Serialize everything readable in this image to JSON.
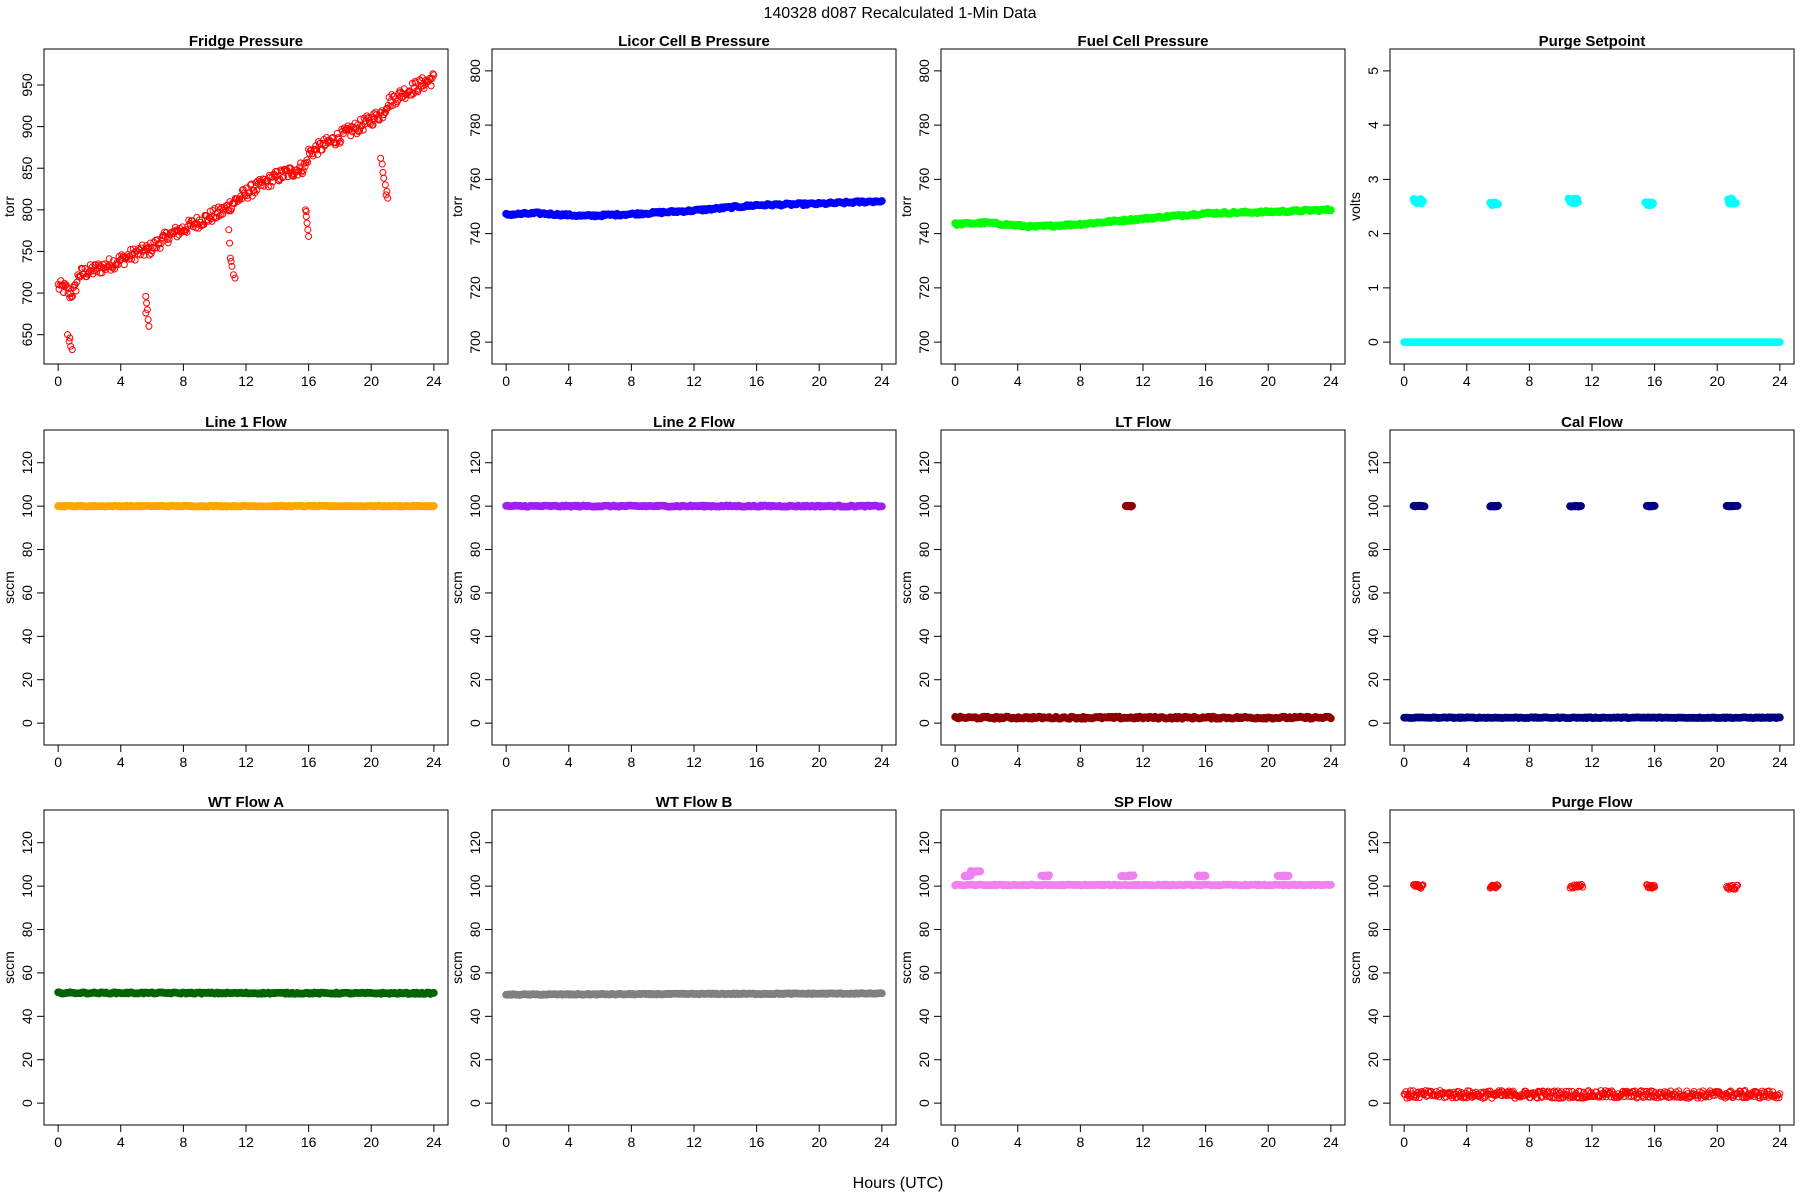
{
  "figure": {
    "title": "140328   d087   Recalculated 1-Min Data",
    "xlabel": "Hours (UTC)"
  },
  "chart_data": [
    {
      "type": "scatter",
      "title": "Fridge Pressure",
      "ylabel": "torr",
      "color": "#ff0000",
      "marker": "hollow-circle",
      "xlim": [
        0,
        24
      ],
      "ylim": [
        628,
        980
      ],
      "xticks": [
        0,
        4,
        8,
        12,
        16,
        20,
        24
      ],
      "yticks": [
        650,
        700,
        750,
        800,
        850,
        900,
        950
      ],
      "trend": [
        [
          0,
          708
        ],
        [
          0.5,
          705
        ],
        [
          0.8,
          698
        ],
        [
          1.1,
          705
        ],
        [
          1.3,
          722
        ],
        [
          3,
          732
        ],
        [
          5,
          748
        ],
        [
          5.8,
          752
        ],
        [
          7,
          768
        ],
        [
          9,
          786
        ],
        [
          10.5,
          798
        ],
        [
          11,
          806
        ],
        [
          12,
          820
        ],
        [
          14,
          840
        ],
        [
          15.8,
          852
        ],
        [
          16,
          868
        ],
        [
          18,
          888
        ],
        [
          20,
          908
        ],
        [
          20.8,
          918
        ],
        [
          21,
          928
        ],
        [
          22,
          940
        ],
        [
          24,
          958
        ]
      ],
      "noise": 8,
      "outliers": [
        [
          0.6,
          650
        ],
        [
          0.7,
          642
        ],
        [
          0.8,
          636
        ],
        [
          0.9,
          632
        ],
        [
          0.75,
          646
        ],
        [
          5.6,
          696
        ],
        [
          5.65,
          688
        ],
        [
          5.7,
          680
        ],
        [
          5.75,
          668
        ],
        [
          5.8,
          660
        ],
        [
          5.6,
          676
        ],
        [
          10.9,
          776
        ],
        [
          10.95,
          760
        ],
        [
          11.0,
          742
        ],
        [
          11.1,
          732
        ],
        [
          11.2,
          722
        ],
        [
          11.3,
          718
        ],
        [
          11.05,
          738
        ],
        [
          15.8,
          800
        ],
        [
          15.85,
          792
        ],
        [
          15.9,
          784
        ],
        [
          15.95,
          776
        ],
        [
          16.0,
          768
        ],
        [
          15.85,
          798
        ],
        [
          20.6,
          862
        ],
        [
          20.7,
          855
        ],
        [
          20.75,
          845
        ],
        [
          20.8,
          838
        ],
        [
          20.9,
          830
        ],
        [
          21.0,
          822
        ],
        [
          21.05,
          814
        ],
        [
          20.95,
          818
        ]
      ]
    },
    {
      "type": "scatter",
      "title": "Licor Cell B Pressure",
      "ylabel": "torr",
      "color": "#0000ff",
      "marker": "filled-circle",
      "xlim": [
        0,
        24
      ],
      "ylim": [
        696,
        804
      ],
      "xticks": [
        0,
        4,
        8,
        12,
        16,
        20,
        24
      ],
      "yticks": [
        700,
        720,
        740,
        760,
        780,
        800
      ],
      "trend": [
        [
          0,
          747
        ],
        [
          2,
          747.5
        ],
        [
          5,
          746.5
        ],
        [
          8,
          747.2
        ],
        [
          12,
          748.5
        ],
        [
          16,
          750.5
        ],
        [
          20,
          751
        ],
        [
          24,
          752
        ]
      ],
      "noise": 0.4
    },
    {
      "type": "scatter",
      "title": "Fuel Cell Pressure",
      "ylabel": "torr",
      "color": "#00ff00",
      "marker": "filled-circle",
      "xlim": [
        0,
        24
      ],
      "ylim": [
        696,
        804
      ],
      "xticks": [
        0,
        4,
        8,
        12,
        16,
        20,
        24
      ],
      "yticks": [
        700,
        720,
        740,
        760,
        780,
        800
      ],
      "trend": [
        [
          0,
          743.5
        ],
        [
          2,
          744
        ],
        [
          5,
          742.5
        ],
        [
          8,
          743.5
        ],
        [
          12,
          745.5
        ],
        [
          16,
          747.5
        ],
        [
          20,
          748
        ],
        [
          24,
          748.8
        ]
      ],
      "noise": 0.4
    },
    {
      "type": "scatter",
      "title": "Purge Setpoint",
      "ylabel": "volts",
      "color": "#00ffff",
      "marker": "filled-circle",
      "xlim": [
        0,
        24
      ],
      "ylim": [
        -0.2,
        5.2
      ],
      "xticks": [
        0,
        4,
        8,
        12,
        16,
        20,
        24
      ],
      "yticks": [
        0,
        1,
        2,
        3,
        4,
        5
      ],
      "trend": [
        [
          0,
          0
        ],
        [
          24,
          0
        ]
      ],
      "noise": 0,
      "clusters": [
        {
          "x": [
            0.6,
            1.2
          ],
          "y": [
            2.55,
            2.65
          ]
        },
        {
          "x": [
            5.5,
            6.0
          ],
          "y": [
            2.52,
            2.58
          ]
        },
        {
          "x": [
            10.5,
            11.1
          ],
          "y": [
            2.55,
            2.65
          ]
        },
        {
          "x": [
            15.4,
            15.9
          ],
          "y": [
            2.52,
            2.58
          ]
        },
        {
          "x": [
            20.7,
            21.2
          ],
          "y": [
            2.55,
            2.65
          ]
        }
      ]
    },
    {
      "type": "scatter",
      "title": "Line 1 Flow",
      "ylabel": "sccm",
      "color": "#ffa500",
      "marker": "filled-circle",
      "xlim": [
        0,
        24
      ],
      "ylim": [
        -5,
        130
      ],
      "xticks": [
        0,
        4,
        8,
        12,
        16,
        20,
        24
      ],
      "yticks": [
        0,
        20,
        40,
        60,
        80,
        100,
        120
      ],
      "trend": [
        [
          0,
          100
        ],
        [
          24,
          100
        ]
      ],
      "noise": 0.2
    },
    {
      "type": "scatter",
      "title": "Line 2 Flow",
      "ylabel": "sccm",
      "color": "#a020f0",
      "marker": "filled-circle",
      "xlim": [
        0,
        24
      ],
      "ylim": [
        -5,
        130
      ],
      "xticks": [
        0,
        4,
        8,
        12,
        16,
        20,
        24
      ],
      "yticks": [
        0,
        20,
        40,
        60,
        80,
        100,
        120
      ],
      "trend": [
        [
          0,
          100
        ],
        [
          24,
          100
        ]
      ],
      "noise": 0.3
    },
    {
      "type": "scatter",
      "title": "LT Flow",
      "ylabel": "sccm",
      "color": "#8b0000",
      "marker": "filled-circle",
      "xlim": [
        0,
        24
      ],
      "ylim": [
        -5,
        130
      ],
      "xticks": [
        0,
        4,
        8,
        12,
        16,
        20,
        24
      ],
      "yticks": [
        0,
        20,
        40,
        60,
        80,
        100,
        120
      ],
      "trend": [
        [
          0,
          2.5
        ],
        [
          24,
          2.5
        ]
      ],
      "noise": 0.5,
      "clusters": [
        {
          "x": [
            10.9,
            11.3
          ],
          "y": [
            99.8,
            100.2
          ]
        }
      ]
    },
    {
      "type": "scatter",
      "title": "Cal Flow",
      "ylabel": "sccm",
      "color": "#000080",
      "marker": "filled-circle",
      "xlim": [
        0,
        24
      ],
      "ylim": [
        -5,
        130
      ],
      "xticks": [
        0,
        4,
        8,
        12,
        16,
        20,
        24
      ],
      "yticks": [
        0,
        20,
        40,
        60,
        80,
        100,
        120
      ],
      "trend": [
        [
          0,
          2.5
        ],
        [
          24,
          2.5
        ]
      ],
      "noise": 0.2,
      "clusters": [
        {
          "x": [
            0.6,
            1.3
          ],
          "y": [
            99.8,
            100.2
          ]
        },
        {
          "x": [
            5.5,
            6.0
          ],
          "y": [
            99.8,
            100.2
          ]
        },
        {
          "x": [
            10.6,
            11.3
          ],
          "y": [
            99.8,
            100.2
          ]
        },
        {
          "x": [
            15.5,
            16.0
          ],
          "y": [
            99.8,
            100.2
          ]
        },
        {
          "x": [
            20.6,
            21.3
          ],
          "y": [
            99.8,
            100.2
          ]
        }
      ]
    },
    {
      "type": "scatter",
      "title": "WT Flow A",
      "ylabel": "sccm",
      "color": "#006400",
      "marker": "filled-circle",
      "xlim": [
        0,
        24
      ],
      "ylim": [
        -5,
        130
      ],
      "xticks": [
        0,
        4,
        8,
        12,
        16,
        20,
        24
      ],
      "yticks": [
        0,
        20,
        40,
        60,
        80,
        100,
        120
      ],
      "trend": [
        [
          0,
          50.8
        ],
        [
          24,
          50.6
        ]
      ],
      "noise": 0.3
    },
    {
      "type": "scatter",
      "title": "WT Flow B",
      "ylabel": "sccm",
      "color": "#808080",
      "marker": "filled-circle",
      "xlim": [
        0,
        24
      ],
      "ylim": [
        -5,
        130
      ],
      "xticks": [
        0,
        4,
        8,
        12,
        16,
        20,
        24
      ],
      "yticks": [
        0,
        20,
        40,
        60,
        80,
        100,
        120
      ],
      "trend": [
        [
          0,
          50
        ],
        [
          12,
          50.3
        ],
        [
          24,
          50.5
        ]
      ],
      "noise": 0.2
    },
    {
      "type": "scatter",
      "title": "SP Flow",
      "ylabel": "sccm",
      "color": "#ee82ee",
      "marker": "filled-circle",
      "xlim": [
        0,
        24
      ],
      "ylim": [
        -5,
        130
      ],
      "xticks": [
        0,
        4,
        8,
        12,
        16,
        20,
        24
      ],
      "yticks": [
        0,
        20,
        40,
        60,
        80,
        100,
        120
      ],
      "trend": [
        [
          0,
          100.5
        ],
        [
          24,
          100.5
        ]
      ],
      "noise": 0.2,
      "clusters": [
        {
          "x": [
            0.6,
            1.0
          ],
          "y": [
            104.5,
            105
          ]
        },
        {
          "x": [
            1.0,
            1.6
          ],
          "y": [
            106.5,
            107
          ]
        },
        {
          "x": [
            5.5,
            6.0
          ],
          "y": [
            104.5,
            105
          ]
        },
        {
          "x": [
            10.6,
            11.4
          ],
          "y": [
            104.5,
            105
          ]
        },
        {
          "x": [
            15.5,
            16.0
          ],
          "y": [
            104.5,
            105
          ]
        },
        {
          "x": [
            20.6,
            21.3
          ],
          "y": [
            104.5,
            105
          ]
        }
      ]
    },
    {
      "type": "scatter",
      "title": "Purge Flow",
      "ylabel": "sccm",
      "color": "#ff0000",
      "marker": "hollow-circle",
      "xlim": [
        0,
        24
      ],
      "ylim": [
        -5,
        130
      ],
      "xticks": [
        0,
        4,
        8,
        12,
        16,
        20,
        24
      ],
      "yticks": [
        0,
        20,
        40,
        60,
        80,
        100,
        120
      ],
      "trend": [
        [
          0,
          4
        ],
        [
          24,
          4
        ]
      ],
      "noise": 1.8,
      "clusters": [
        {
          "x": [
            0.6,
            1.2
          ],
          "y": [
            99,
            100.8
          ]
        },
        {
          "x": [
            5.5,
            6.0
          ],
          "y": [
            99,
            100.8
          ]
        },
        {
          "x": [
            10.6,
            11.4
          ],
          "y": [
            99,
            100.8
          ]
        },
        {
          "x": [
            15.5,
            16.0
          ],
          "y": [
            99,
            100.8
          ]
        },
        {
          "x": [
            20.6,
            21.3
          ],
          "y": [
            98.5,
            100.5
          ]
        }
      ]
    }
  ]
}
